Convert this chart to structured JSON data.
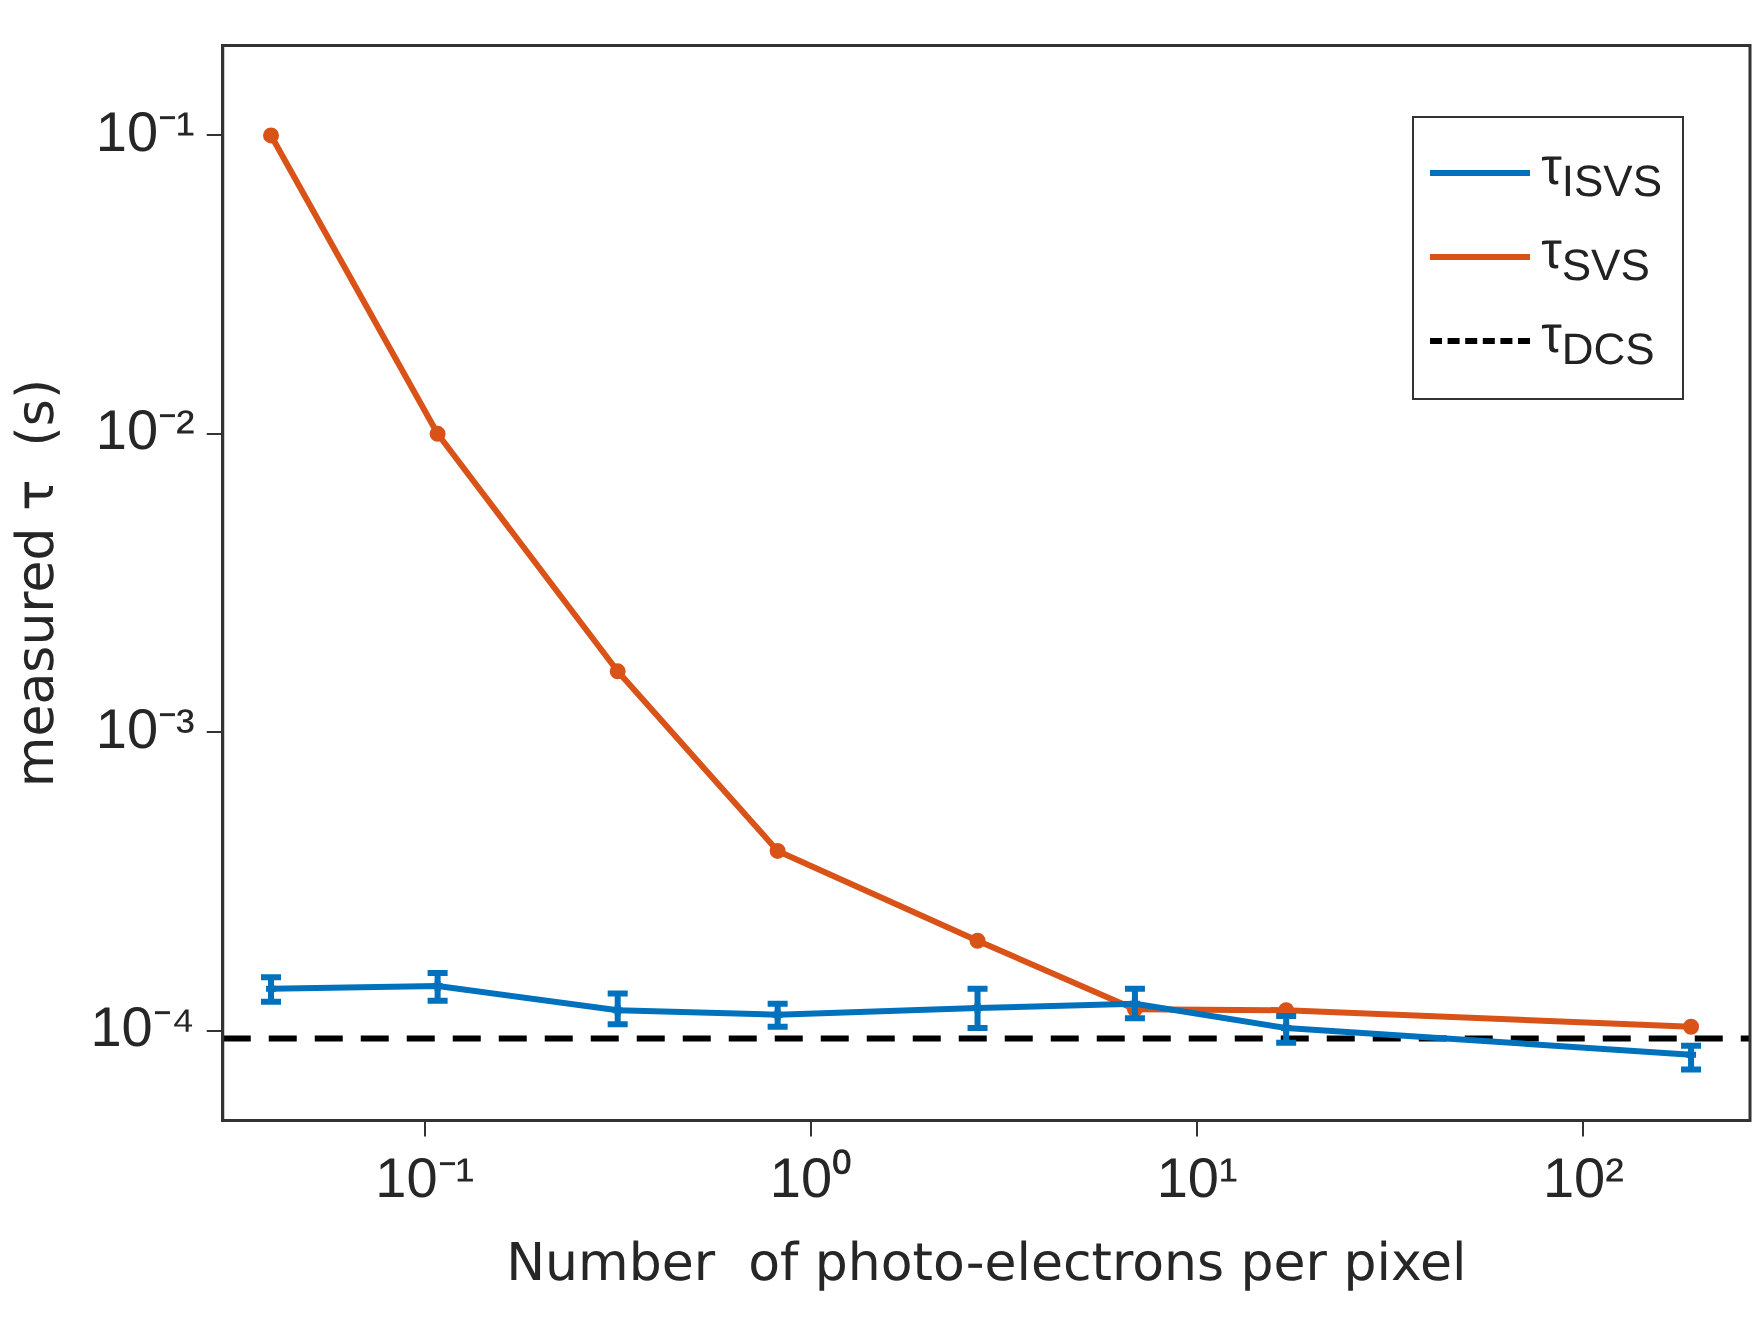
{
  "chart_data": {
    "type": "line",
    "xlabel": "Number  of photo-electrons per pixel",
    "ylabel": "measured τ  (s)",
    "log": "xy",
    "grid": false,
    "legend": "top right",
    "xlim": [
      0.03,
      270
    ],
    "ylim": [
      5e-05,
      0.2
    ],
    "xticks": [
      {
        "value": 0.1,
        "label": "10⁻¹"
      },
      {
        "value": 1,
        "label": "10⁰"
      },
      {
        "value": 10,
        "label": "10¹"
      },
      {
        "value": 100,
        "label": "10²"
      }
    ],
    "yticks": [
      {
        "value": 0.0001,
        "label": "10⁻⁴"
      },
      {
        "value": 0.001,
        "label": "10⁻³"
      },
      {
        "value": 0.01,
        "label": "10⁻²"
      },
      {
        "value": 0.1,
        "label": "10⁻¹"
      }
    ],
    "x": [
      0.04,
      0.108,
      0.316,
      0.82,
      2.7,
      6.9,
      17,
      190
    ],
    "series": [
      {
        "name": "τ$_{ISVS}$",
        "color": "#0072bd",
        "marker": "cross",
        "values": [
          0.000138,
          0.000141,
          0.000117,
          0.000113,
          0.000119,
          0.000123,
          0.000102,
          8.3e-05
        ],
        "errors": [
          [
            0.000125,
            0.000151
          ],
          [
            0.000126,
            0.000156
          ],
          [
            0.000105,
            0.000133
          ],
          [
            0.000103,
            0.000123
          ],
          [
            0.000102,
            0.000138
          ],
          [
            0.00011,
            0.000138
          ],
          [
            9.1e-05,
            0.000112
          ],
          [
            7.4e-05,
            8.9e-05
          ]
        ]
      },
      {
        "name": "τ$_{SVS}$",
        "color": "#d95319",
        "marker": "circle",
        "values": [
          0.1,
          0.01,
          0.0016,
          0.0004,
          0.0002,
          0.000118,
          0.000117,
          0.000103
        ]
      },
      {
        "name": "τ$_{DCS}$",
        "color": "#000000",
        "line_style": "dashed",
        "marker": "none",
        "x": [
          0.03,
          270
        ],
        "values": [
          9.4e-05,
          9.4e-05
        ]
      }
    ]
  }
}
